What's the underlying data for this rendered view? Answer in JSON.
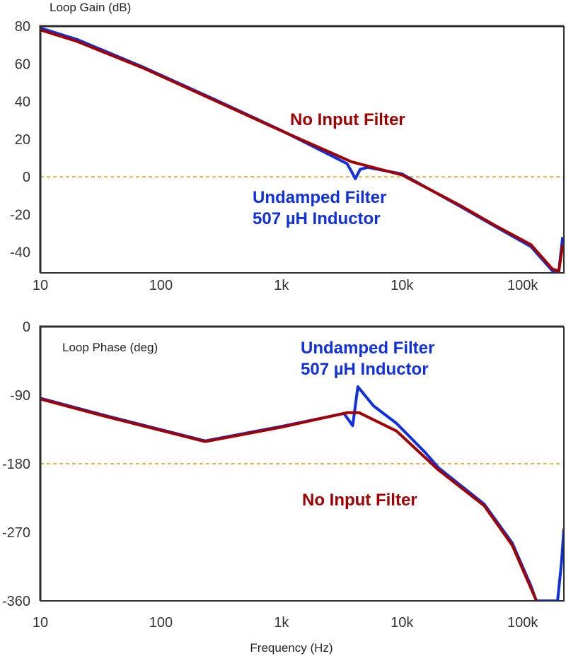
{
  "chart_data": [
    {
      "type": "line",
      "title": "Loop Gain (dB)",
      "xlabel": "",
      "ylabel": "",
      "xscale": "log",
      "xlim": [
        10,
        220000
      ],
      "ylim": [
        -51,
        80
      ],
      "xticks": [
        "10",
        "100",
        "1k",
        "10k",
        "100k"
      ],
      "xtick_values": [
        10,
        100,
        1000,
        10000,
        100000
      ],
      "yticks": [
        "80",
        "60",
        "40",
        "20",
        "0",
        "-20",
        "-40"
      ],
      "ytick_values": [
        80,
        60,
        40,
        20,
        0,
        -20,
        -40
      ],
      "reference_line": {
        "y": 0,
        "color": "#d4a017",
        "style": "dashed"
      },
      "series": [
        {
          "name": "No Input Filter",
          "color": "#a00000",
          "x": [
            10,
            20,
            70,
            270,
            1000,
            3800,
            10000,
            30000,
            58000,
            117000,
            177000,
            200000,
            215000
          ],
          "y": [
            78,
            72,
            58,
            41,
            24.4,
            8,
            1,
            -15,
            -25.5,
            -36,
            -49,
            -50,
            -36
          ]
        },
        {
          "name": "Undamped Filter 507 µH Inductor",
          "color": "#1030e0",
          "x": [
            10,
            20,
            70,
            270,
            1000,
            3500,
            3800,
            4100,
            4500,
            5200,
            10000,
            30000,
            58000,
            117000,
            177000,
            200000,
            215000
          ],
          "y": [
            79,
            73,
            58.5,
            41.5,
            24.6,
            7,
            3,
            -1,
            4,
            5,
            1.5,
            -15.5,
            -26,
            -37,
            -50,
            -50,
            -32
          ]
        }
      ],
      "annotations": [
        {
          "text": "No Input Filter",
          "color": "#a00000"
        },
        {
          "text": "Undamped Filter",
          "color": "#1030e0"
        },
        {
          "text": "507 µH Inductor",
          "color": "#1030e0"
        }
      ]
    },
    {
      "type": "line",
      "title": "Loop Phase (deg)",
      "xlabel": "Frequency (Hz)",
      "ylabel": "",
      "xscale": "log",
      "xlim": [
        10,
        220000
      ],
      "ylim": [
        -360,
        0
      ],
      "xticks": [
        "10",
        "100",
        "1k",
        "10k",
        "100k"
      ],
      "xtick_values": [
        10,
        100,
        1000,
        10000,
        100000
      ],
      "yticks": [
        "0",
        "-90",
        "-180",
        "-270",
        "-360"
      ],
      "ytick_values": [
        0,
        -90,
        -180,
        -270,
        -360
      ],
      "reference_line": {
        "y": -180,
        "color": "#d4a017",
        "style": "dashed"
      },
      "series": [
        {
          "name": "No Input Filter",
          "color": "#a00000",
          "x": [
            10,
            35,
            233,
            1000,
            3500,
            4400,
            9000,
            20000,
            48000,
            82000,
            117000,
            130000
          ],
          "y": [
            -95,
            -118,
            -151,
            -132,
            -113,
            -113,
            -137,
            -188,
            -235,
            -287,
            -343,
            -360
          ]
        },
        {
          "name": "Undamped Filter 507 µH Inductor",
          "color": "#1030e0",
          "x": [
            10,
            35,
            233,
            1000,
            3300,
            3900,
            4300,
            5800,
            9000,
            15500,
            20000,
            48000,
            82000,
            117000,
            130000,
            195000,
            210000,
            220000
          ],
          "y": [
            -94,
            -117,
            -150,
            -131,
            -114,
            -130,
            -79,
            -104,
            -127,
            -165,
            -185,
            -233,
            -284,
            -340,
            -360,
            -360,
            -310,
            -265
          ]
        }
      ],
      "annotations": [
        {
          "text": "No Input Filter",
          "color": "#a00000"
        },
        {
          "text": "Undamped Filter",
          "color": "#1030e0"
        },
        {
          "text": "507 µH Inductor",
          "color": "#1030e0"
        }
      ]
    }
  ]
}
